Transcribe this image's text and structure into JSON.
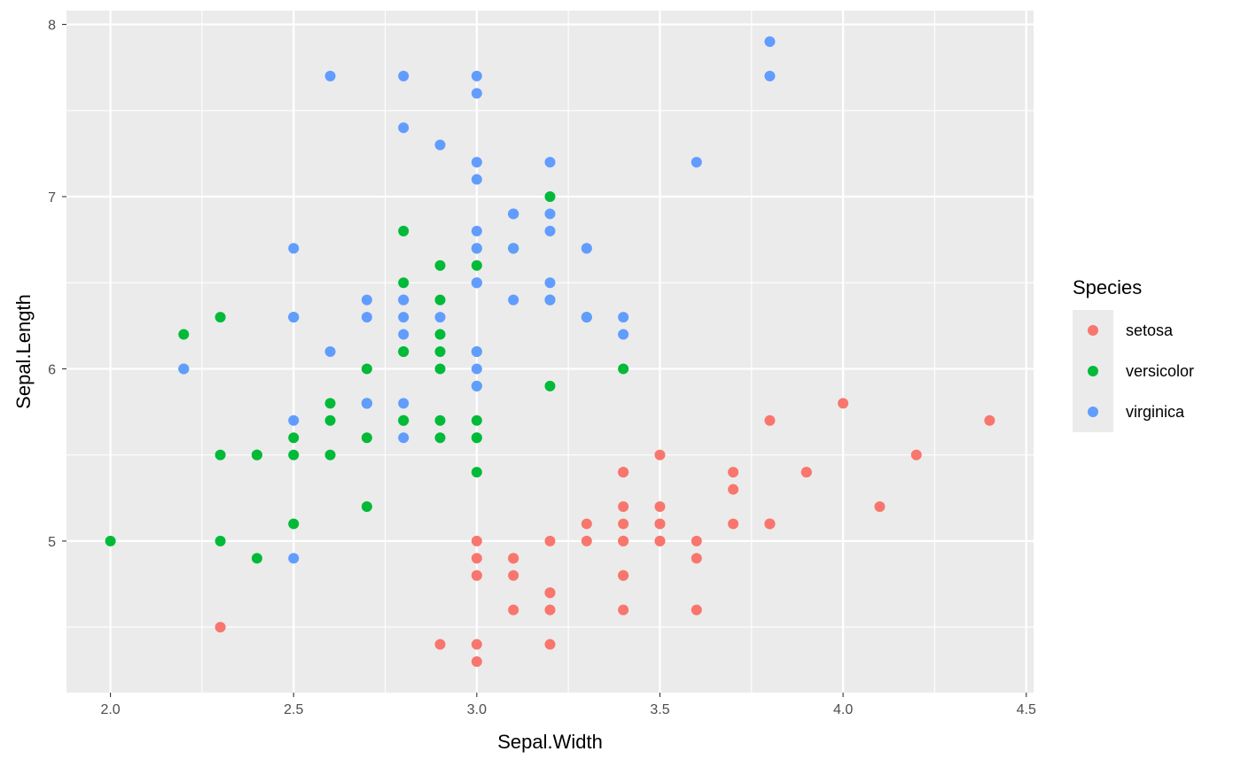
{
  "chart_data": {
    "type": "scatter",
    "title": "",
    "xlabel": "Sepal.Width",
    "ylabel": "Sepal.Length",
    "xlim": [
      1.88,
      4.52
    ],
    "ylim": [
      4.12,
      8.08
    ],
    "x_ticks": [
      2.0,
      2.5,
      3.0,
      3.5,
      4.0,
      4.5
    ],
    "x_tick_labels": [
      "2.0",
      "2.5",
      "3.0",
      "3.5",
      "4.0",
      "4.5"
    ],
    "y_ticks": [
      5,
      6,
      7,
      8
    ],
    "y_tick_labels": [
      "5",
      "6",
      "7",
      "8"
    ],
    "grid": true,
    "legend": {
      "title": "Species",
      "position": "right"
    },
    "series": [
      {
        "name": "setosa",
        "color": "#F8766D",
        "points": [
          [
            3.5,
            5.1
          ],
          [
            3.0,
            4.9
          ],
          [
            3.2,
            4.7
          ],
          [
            3.1,
            4.6
          ],
          [
            3.6,
            5.0
          ],
          [
            3.9,
            5.4
          ],
          [
            3.4,
            4.6
          ],
          [
            3.4,
            5.0
          ],
          [
            2.9,
            4.4
          ],
          [
            3.1,
            4.9
          ],
          [
            3.7,
            5.4
          ],
          [
            3.4,
            4.8
          ],
          [
            3.0,
            4.8
          ],
          [
            3.0,
            4.3
          ],
          [
            4.0,
            5.8
          ],
          [
            4.4,
            5.7
          ],
          [
            3.9,
            5.4
          ],
          [
            3.5,
            5.1
          ],
          [
            3.8,
            5.7
          ],
          [
            3.8,
            5.1
          ],
          [
            3.4,
            5.4
          ],
          [
            3.7,
            5.1
          ],
          [
            3.6,
            4.6
          ],
          [
            3.3,
            5.1
          ],
          [
            3.4,
            4.8
          ],
          [
            3.0,
            5.0
          ],
          [
            3.4,
            5.0
          ],
          [
            3.5,
            5.2
          ],
          [
            3.4,
            5.2
          ],
          [
            3.2,
            4.7
          ],
          [
            3.1,
            4.8
          ],
          [
            3.4,
            5.4
          ],
          [
            4.1,
            5.2
          ],
          [
            4.2,
            5.5
          ],
          [
            3.1,
            4.9
          ],
          [
            3.2,
            5.0
          ],
          [
            3.5,
            5.5
          ],
          [
            3.6,
            4.9
          ],
          [
            3.0,
            4.4
          ],
          [
            3.4,
            5.1
          ],
          [
            3.5,
            5.0
          ],
          [
            2.3,
            4.5
          ],
          [
            3.2,
            4.4
          ],
          [
            3.5,
            5.0
          ],
          [
            3.8,
            5.1
          ],
          [
            3.0,
            4.8
          ],
          [
            3.8,
            5.1
          ],
          [
            3.2,
            4.6
          ],
          [
            3.7,
            5.3
          ],
          [
            3.3,
            5.0
          ]
        ]
      },
      {
        "name": "versicolor",
        "color": "#00BA38",
        "points": [
          [
            3.2,
            7.0
          ],
          [
            3.2,
            6.4
          ],
          [
            3.1,
            6.9
          ],
          [
            2.3,
            5.5
          ],
          [
            2.8,
            6.5
          ],
          [
            2.8,
            5.7
          ],
          [
            3.3,
            6.3
          ],
          [
            2.4,
            4.9
          ],
          [
            2.9,
            6.6
          ],
          [
            2.7,
            5.2
          ],
          [
            2.0,
            5.0
          ],
          [
            3.0,
            5.9
          ],
          [
            2.2,
            6.0
          ],
          [
            2.9,
            6.1
          ],
          [
            2.9,
            5.6
          ],
          [
            3.1,
            6.7
          ],
          [
            3.0,
            5.6
          ],
          [
            2.7,
            5.8
          ],
          [
            2.2,
            6.2
          ],
          [
            2.5,
            5.6
          ],
          [
            3.2,
            5.9
          ],
          [
            2.8,
            6.1
          ],
          [
            2.5,
            6.3
          ],
          [
            2.8,
            6.1
          ],
          [
            2.9,
            6.4
          ],
          [
            3.0,
            6.6
          ],
          [
            2.8,
            6.8
          ],
          [
            3.0,
            6.7
          ],
          [
            2.9,
            6.0
          ],
          [
            2.6,
            5.7
          ],
          [
            2.4,
            5.5
          ],
          [
            2.4,
            5.5
          ],
          [
            2.7,
            5.8
          ],
          [
            2.7,
            6.0
          ],
          [
            3.0,
            5.4
          ],
          [
            3.4,
            6.0
          ],
          [
            3.1,
            6.7
          ],
          [
            2.3,
            6.3
          ],
          [
            3.0,
            5.6
          ],
          [
            2.5,
            5.5
          ],
          [
            2.6,
            5.5
          ],
          [
            3.0,
            6.1
          ],
          [
            2.6,
            5.8
          ],
          [
            2.3,
            5.0
          ],
          [
            2.7,
            5.6
          ],
          [
            3.0,
            5.7
          ],
          [
            2.9,
            5.7
          ],
          [
            2.9,
            6.2
          ],
          [
            2.5,
            5.1
          ],
          [
            2.8,
            5.7
          ]
        ]
      },
      {
        "name": "virginica",
        "color": "#619CFF",
        "points": [
          [
            3.3,
            6.3
          ],
          [
            2.7,
            5.8
          ],
          [
            3.0,
            7.1
          ],
          [
            2.9,
            6.3
          ],
          [
            3.0,
            6.5
          ],
          [
            3.0,
            7.6
          ],
          [
            2.5,
            4.9
          ],
          [
            2.9,
            7.3
          ],
          [
            2.5,
            6.7
          ],
          [
            3.6,
            7.2
          ],
          [
            3.2,
            6.5
          ],
          [
            2.7,
            6.4
          ],
          [
            3.0,
            6.8
          ],
          [
            2.5,
            5.7
          ],
          [
            2.8,
            5.8
          ],
          [
            3.2,
            6.4
          ],
          [
            3.0,
            6.5
          ],
          [
            3.8,
            7.7
          ],
          [
            2.6,
            7.7
          ],
          [
            2.2,
            6.0
          ],
          [
            3.2,
            6.9
          ],
          [
            2.8,
            5.6
          ],
          [
            2.8,
            7.7
          ],
          [
            2.7,
            6.3
          ],
          [
            3.3,
            6.7
          ],
          [
            3.2,
            7.2
          ],
          [
            2.8,
            6.2
          ],
          [
            3.0,
            6.1
          ],
          [
            2.8,
            6.4
          ],
          [
            3.0,
            7.2
          ],
          [
            2.8,
            7.4
          ],
          [
            3.8,
            7.9
          ],
          [
            2.8,
            6.4
          ],
          [
            2.8,
            6.3
          ],
          [
            2.6,
            6.1
          ],
          [
            3.0,
            7.7
          ],
          [
            3.4,
            6.3
          ],
          [
            3.1,
            6.4
          ],
          [
            3.0,
            6.0
          ],
          [
            3.1,
            6.9
          ],
          [
            3.1,
            6.7
          ],
          [
            3.1,
            6.9
          ],
          [
            2.7,
            5.8
          ],
          [
            3.2,
            6.8
          ],
          [
            3.3,
            6.7
          ],
          [
            3.0,
            6.7
          ],
          [
            2.5,
            6.3
          ],
          [
            3.0,
            6.5
          ],
          [
            3.4,
            6.2
          ],
          [
            3.0,
            5.9
          ]
        ]
      }
    ]
  }
}
